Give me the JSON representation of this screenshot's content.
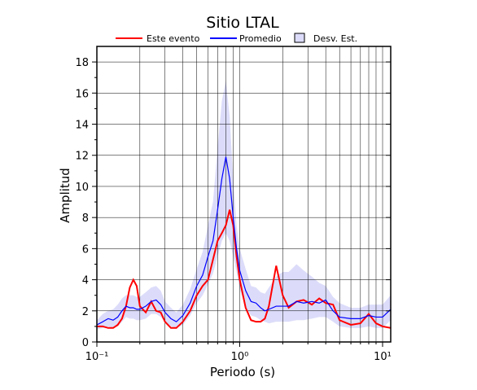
{
  "chart_data": {
    "type": "line",
    "title": "Sitio LTAL",
    "x_label": "Periodo (s)",
    "y_label": "Amplitud",
    "log_x": true,
    "grid": true,
    "xlim": [
      0.1,
      11.4
    ],
    "ylim": [
      0,
      19
    ],
    "xticks": [
      {
        "value": 0.1,
        "label": "10⁻¹"
      },
      {
        "value": 1,
        "label": "10⁰"
      },
      {
        "value": 10,
        "label": "10¹"
      }
    ],
    "xminorticks": [
      0.2,
      0.3,
      0.4,
      0.5,
      0.6,
      0.7,
      0.8,
      0.9,
      2,
      3,
      4,
      5,
      6,
      7,
      8,
      9
    ],
    "yticks": [
      0,
      2,
      4,
      6,
      8,
      10,
      12,
      14,
      16,
      18
    ],
    "yminorticks": [
      1,
      3,
      5,
      7,
      9,
      11,
      13,
      15,
      17
    ],
    "x": [
      0.1,
      0.11,
      0.12,
      0.13,
      0.14,
      0.15,
      0.16,
      0.17,
      0.18,
      0.19,
      0.2,
      0.22,
      0.24,
      0.26,
      0.28,
      0.3,
      0.33,
      0.36,
      0.4,
      0.45,
      0.5,
      0.55,
      0.6,
      0.65,
      0.7,
      0.75,
      0.8,
      0.85,
      0.9,
      0.95,
      1.0,
      1.1,
      1.2,
      1.3,
      1.4,
      1.5,
      1.6,
      1.8,
      2.0,
      2.2,
      2.5,
      2.8,
      3.2,
      3.6,
      4.0,
      4.5,
      5,
      6,
      7,
      8,
      9,
      10,
      11.4
    ],
    "series": [
      {
        "name": "Este evento",
        "color": "#ff0000",
        "values": [
          1.0,
          1.0,
          0.9,
          0.9,
          1.1,
          1.5,
          2.3,
          3.5,
          4.0,
          3.6,
          2.3,
          1.9,
          2.6,
          2.0,
          1.9,
          1.3,
          0.9,
          0.9,
          1.3,
          2.0,
          3.0,
          3.6,
          4.0,
          5.3,
          6.5,
          7.0,
          7.5,
          8.5,
          7.5,
          5.5,
          4.0,
          2.2,
          1.4,
          1.3,
          1.3,
          1.5,
          2.3,
          4.9,
          3.0,
          2.2,
          2.6,
          2.7,
          2.4,
          2.8,
          2.5,
          2.4,
          1.4,
          1.1,
          1.2,
          1.8,
          1.2,
          1.0,
          0.9
        ]
      },
      {
        "name": "Promedio",
        "color": "#0000ff",
        "values": [
          1.1,
          1.3,
          1.5,
          1.4,
          1.6,
          2.0,
          2.3,
          2.2,
          2.2,
          2.1,
          2.1,
          2.3,
          2.6,
          2.7,
          2.4,
          1.9,
          1.5,
          1.3,
          1.7,
          2.5,
          3.6,
          4.3,
          5.5,
          6.5,
          8.5,
          10.5,
          11.9,
          10.5,
          8.0,
          6.0,
          4.6,
          3.3,
          2.6,
          2.5,
          2.2,
          2.0,
          2.1,
          2.3,
          2.3,
          2.3,
          2.6,
          2.5,
          2.6,
          2.5,
          2.7,
          2.0,
          1.6,
          1.5,
          1.5,
          1.7,
          1.6,
          1.6,
          2.1
        ]
      },
      {
        "name": "Desv. Est.",
        "color": "#dcdcfa",
        "upper": [
          1.4,
          1.8,
          2.0,
          2.1,
          2.4,
          2.8,
          3.0,
          3.0,
          3.0,
          2.9,
          2.9,
          3.2,
          3.5,
          3.6,
          3.3,
          2.6,
          2.2,
          1.9,
          2.4,
          3.4,
          4.7,
          5.8,
          7.5,
          9.0,
          12.5,
          15.5,
          16.8,
          14.5,
          10.5,
          7.5,
          6.0,
          4.7,
          3.6,
          3.5,
          3.2,
          3.1,
          3.5,
          4.2,
          4.5,
          4.5,
          5.0,
          4.6,
          4.2,
          3.8,
          3.6,
          2.9,
          2.5,
          2.2,
          2.2,
          2.4,
          2.4,
          2.4,
          3.0
        ],
        "lower": [
          0.8,
          0.9,
          1.0,
          0.9,
          1.0,
          1.3,
          1.6,
          1.5,
          1.5,
          1.4,
          1.4,
          1.5,
          1.8,
          1.8,
          1.6,
          1.3,
          1.0,
          0.9,
          1.1,
          1.7,
          2.5,
          3.0,
          3.7,
          4.4,
          5.5,
          6.5,
          7.0,
          6.5,
          5.5,
          4.5,
          3.4,
          2.2,
          1.7,
          1.6,
          1.4,
          1.3,
          1.2,
          1.3,
          1.3,
          1.3,
          1.4,
          1.4,
          1.5,
          1.6,
          1.6,
          1.3,
          1.0,
          0.9,
          0.9,
          1.0,
          0.9,
          0.9,
          1.4
        ]
      }
    ]
  }
}
